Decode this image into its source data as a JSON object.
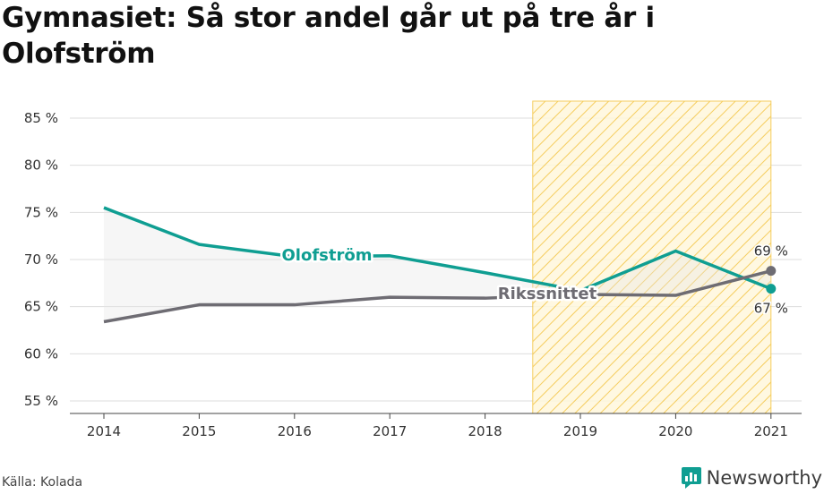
{
  "title": "Gymnasiet: Så stor andel går ut på tre år i Olofström",
  "source": "Källa: Kolada",
  "brand": {
    "name": "Newsworthy",
    "icon": "newsworthy-logo-icon"
  },
  "colors": {
    "olofstrom": "#0f9e92",
    "riksnitt": "#6e6c73",
    "highlight": "#f4c542",
    "grid": "#dddddd"
  },
  "chart_data": {
    "type": "line",
    "x": [
      "2014",
      "2015",
      "2016",
      "2017",
      "2018",
      "2019",
      "2020",
      "2021"
    ],
    "y_ticks": [
      "55 %",
      "60 %",
      "65 %",
      "70 %",
      "75 %",
      "80 %",
      "85 %"
    ],
    "ylim": [
      54,
      87
    ],
    "grid": true,
    "series": [
      {
        "name": "Olofström",
        "values": [
          75.5,
          71.6,
          70.3,
          70.4,
          68.6,
          66.7,
          70.9,
          66.9
        ],
        "end_label": "67 %"
      },
      {
        "name": "Rikssnittet",
        "values": [
          63.4,
          65.2,
          65.2,
          66.0,
          65.9,
          66.3,
          66.2,
          68.8
        ],
        "end_label": "69 %"
      }
    ],
    "highlight_range": [
      "2019",
      "2021"
    ]
  }
}
